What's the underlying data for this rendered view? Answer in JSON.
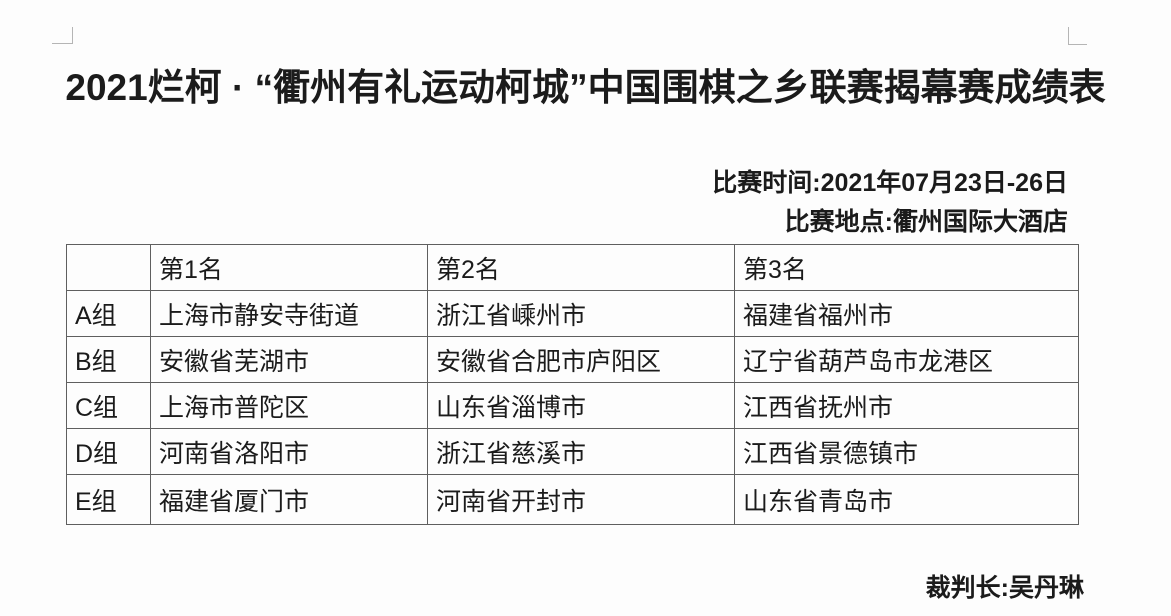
{
  "document": {
    "title": "2021烂柯 · “衢州有礼运动柯城”中国围棋之乡联赛揭幕赛成绩表",
    "meta": {
      "time_line": "比赛时间:2021年07月23日-26日",
      "venue_line": "比赛地点:衢州国际大酒店"
    },
    "footer": {
      "referee_line": "裁判长:吴丹琳"
    }
  },
  "table": {
    "headers": [
      "",
      "第1名",
      "第2名",
      "第3名"
    ],
    "rows": [
      {
        "group": "A组",
        "places": [
          "上海市静安寺街道",
          "浙江省嵊州市",
          "福建省福州市"
        ]
      },
      {
        "group": "B组",
        "places": [
          "安徽省芜湖市",
          "安徽省合肥市庐阳区",
          "辽宁省葫芦岛市龙港区"
        ]
      },
      {
        "group": "C组",
        "places": [
          "上海市普陀区",
          "山东省淄博市",
          "江西省抚州市"
        ]
      },
      {
        "group": "D组",
        "places": [
          "河南省洛阳市",
          "浙江省慈溪市",
          "江西省景德镇市"
        ]
      },
      {
        "group": "E组",
        "places": [
          "福建省厦门市",
          "河南省开封市",
          "山东省青岛市"
        ]
      }
    ]
  },
  "colors": {
    "text": "#1b1b1b",
    "table_border": "#5f5f5f",
    "background": "#fdfdfd",
    "margin_mark": "#b5b5b5"
  }
}
